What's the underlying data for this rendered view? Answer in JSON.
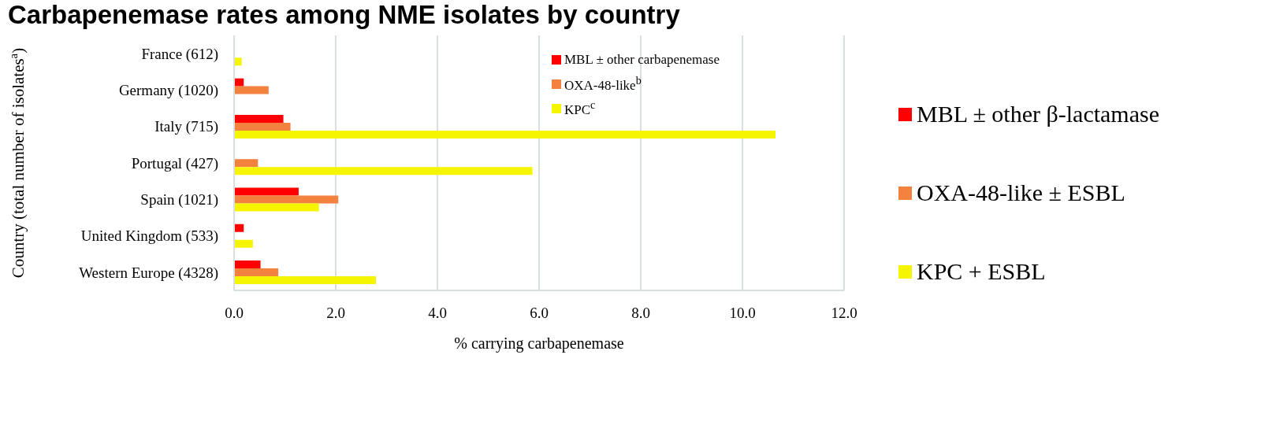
{
  "chart_data": {
    "type": "bar",
    "orientation": "horizontal",
    "title": "Carbapenemase rates among NME isolates by country",
    "xlabel": "% carrying carbapenemase",
    "ylabel": "Country (total number of isolates$^{a}$)",
    "categories": [
      "France (612)",
      "Germany (1020)",
      "Italy (715)",
      "Portugal (427)",
      "Spain (1021)",
      "United Kingdom (533)",
      "Western Europe (4328)"
    ],
    "series": [
      {
        "name": "MBL ± other carbapenemase",
        "color": "#ff0000",
        "values": [
          null,
          0.19,
          0.97,
          null,
          1.27,
          0.19,
          0.52
        ]
      },
      {
        "name": "OXA-48-like$^{b}$",
        "color": "#f4823f",
        "values": [
          null,
          0.68,
          1.11,
          0.47,
          2.05,
          null,
          0.87
        ]
      },
      {
        "name": "KPC$^{c}$",
        "color": "#f5f500",
        "values": [
          0.15,
          null,
          10.65,
          5.87,
          1.67,
          0.37,
          2.79
        ]
      }
    ],
    "xlim": [
      0,
      12
    ],
    "xticks": [
      {
        "value": 0,
        "label": "0.0"
      },
      {
        "value": 2,
        "label": "2.0"
      },
      {
        "value": 4,
        "label": "4.0"
      },
      {
        "value": 6,
        "label": "6.0"
      },
      {
        "value": 8,
        "label": "8.0"
      },
      {
        "value": 10,
        "label": "10.0"
      },
      {
        "value": 12,
        "label": "12.0"
      }
    ],
    "grid": "x",
    "legend": "top right",
    "annotations": [
      "MBL ± other β-lactamase",
      "OXA-48-like ± ESBL",
      "KPC + ESBL"
    ]
  }
}
